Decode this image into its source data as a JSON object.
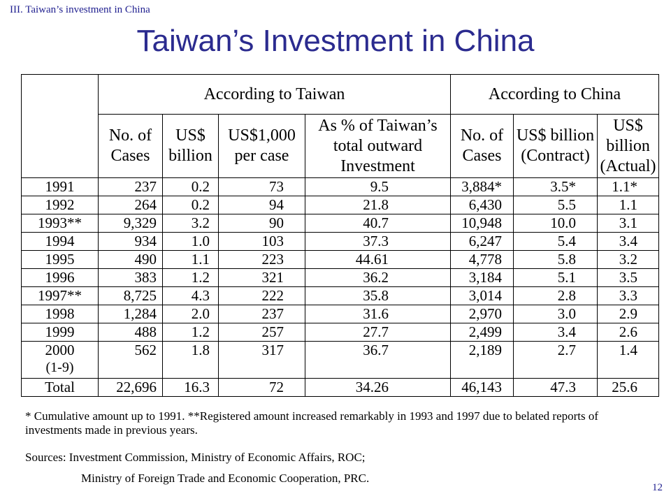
{
  "slide": {
    "section_label": "III. Taiwan’s investment in China",
    "title": "Taiwan’s Investment in China",
    "page_number": "12"
  },
  "table": {
    "group_headers": [
      "According to Taiwan",
      "According to China"
    ],
    "column_headers": [
      "No. of Cases",
      "US$ billion",
      "US$1,000 per case",
      "As % of Taiwan’s total outward Investment",
      "No. of Cases",
      "US$ billion (Contract)",
      "US$ billion (Actual)"
    ],
    "rows": [
      {
        "year": "1991",
        "sub": "",
        "values": [
          "237",
          "0.2",
          "73",
          "9.5",
          "3,884*",
          "3.5*",
          "1.1*"
        ]
      },
      {
        "year": "1992",
        "sub": "",
        "values": [
          "264",
          "0.2",
          "94",
          "21.8",
          "6,430",
          "5.5",
          "1.1"
        ]
      },
      {
        "year": "1993**",
        "sub": "",
        "values": [
          "9,329",
          "3.2",
          "90",
          "40.7",
          "10,948",
          "10.0",
          "3.1"
        ]
      },
      {
        "year": "1994",
        "sub": "",
        "values": [
          "934",
          "1.0",
          "103",
          "37.3",
          "6,247",
          "5.4",
          "3.4"
        ]
      },
      {
        "year": "1995",
        "sub": "",
        "values": [
          "490",
          "1.1",
          "223",
          "44.61",
          "4,778",
          "5.8",
          "3.2"
        ]
      },
      {
        "year": "1996",
        "sub": "",
        "values": [
          "383",
          "1.2",
          "321",
          "36.2",
          "3,184",
          "5.1",
          "3.5"
        ]
      },
      {
        "year": "1997**",
        "sub": "",
        "values": [
          "8,725",
          "4.3",
          "222",
          "35.8",
          "3,014",
          "2.8",
          "3.3"
        ]
      },
      {
        "year": "1998",
        "sub": "",
        "values": [
          "1,284",
          "2.0",
          "237",
          "31.6",
          "2,970",
          "3.0",
          "2.9"
        ]
      },
      {
        "year": "1999",
        "sub": "",
        "values": [
          "488",
          "1.2",
          "257",
          "27.7",
          "2,499",
          "3.4",
          "2.6"
        ]
      },
      {
        "year": "2000",
        "sub": "(1-9)",
        "values": [
          "562",
          "1.8",
          "317",
          "36.7",
          "2,189",
          "2.7",
          "1.4"
        ]
      },
      {
        "year": "Total",
        "sub": "",
        "values": [
          "22,696",
          "16.3",
          "72",
          "34.26",
          "46,143",
          "47.3",
          "25.6"
        ]
      }
    ]
  },
  "notes": {
    "line1": "* Cumulative amount up to 1991.      **Registered amount increased remarkably in 1993 and 1997 due to belated reports of investments made in previous years."
  },
  "sources": {
    "line1": "Sources: Investment Commission, Ministry of Economic Affairs, ROC;",
    "line2": "Ministry of Foreign Trade and Economic Cooperation, PRC."
  }
}
